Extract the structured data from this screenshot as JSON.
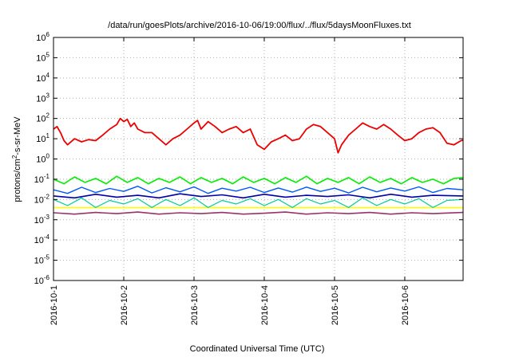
{
  "chart_data": {
    "type": "line",
    "title": "/data/run/goesPlots/archive/2016-10-06/19:00/flux/../flux/5daysMoonFluxes.txt",
    "xlabel": "Coordinated Universal Time (UTC)",
    "ylabel_parts": [
      "protons/cm",
      "2",
      "-s-sr-MeV"
    ],
    "y_scale": "log",
    "ylim": [
      1e-06,
      1000000.0
    ],
    "xlim": [
      0,
      5.83
    ],
    "x_unit": "days since 2016-10-01 00:00 UTC",
    "x_ticks": [
      {
        "pos": 0,
        "label": "2016-10-1"
      },
      {
        "pos": 1,
        "label": "2016-10-2"
      },
      {
        "pos": 2,
        "label": "2016-10-3"
      },
      {
        "pos": 3,
        "label": "2016-10-4"
      },
      {
        "pos": 4,
        "label": "2016-10-5"
      },
      {
        "pos": 5,
        "label": "2016-10-6"
      }
    ],
    "y_ticks": [
      {
        "exp": "6",
        "value": 1000000.0
      },
      {
        "exp": "5",
        "value": 100000.0
      },
      {
        "exp": "4",
        "value": 10000.0
      },
      {
        "exp": "3",
        "value": 1000.0
      },
      {
        "exp": "2",
        "value": 100.0
      },
      {
        "exp": "1",
        "value": 10.0
      },
      {
        "exp": "0",
        "value": 1.0
      },
      {
        "exp": "-1",
        "value": 0.1
      },
      {
        "exp": "-2",
        "value": 0.01
      },
      {
        "exp": "-3",
        "value": 0.001
      },
      {
        "exp": "-4",
        "value": 0.0001
      },
      {
        "exp": "-5",
        "value": 1e-05
      },
      {
        "exp": "-6",
        "value": 1e-06
      }
    ],
    "grid": true,
    "series": [
      {
        "color": "#ffff00",
        "width": 1.6,
        "points": [
          [
            0,
            0.004
          ],
          [
            5.83,
            0.004
          ]
        ]
      },
      {
        "color": "#993366",
        "width": 1.6,
        "points": [
          [
            0,
            0.0022
          ],
          [
            0.3,
            0.0019
          ],
          [
            0.6,
            0.0023
          ],
          [
            0.9,
            0.002
          ],
          [
            1.2,
            0.0024
          ],
          [
            1.5,
            0.0019
          ],
          [
            1.8,
            0.0022
          ],
          [
            2.1,
            0.002
          ],
          [
            2.4,
            0.0023
          ],
          [
            2.7,
            0.0019
          ],
          [
            3.0,
            0.0021
          ],
          [
            3.3,
            0.0024
          ],
          [
            3.6,
            0.0019
          ],
          [
            3.9,
            0.0022
          ],
          [
            4.2,
            0.002
          ],
          [
            4.5,
            0.0023
          ],
          [
            4.8,
            0.0019
          ],
          [
            5.1,
            0.0022
          ],
          [
            5.4,
            0.002
          ],
          [
            5.83,
            0.0023
          ]
        ]
      },
      {
        "color": "#00cc99",
        "width": 1.2,
        "points": [
          [
            0,
            0.01
          ],
          [
            0.2,
            0.005
          ],
          [
            0.4,
            0.012
          ],
          [
            0.6,
            0.004
          ],
          [
            0.8,
            0.009
          ],
          [
            1.0,
            0.006
          ],
          [
            1.2,
            0.011
          ],
          [
            1.4,
            0.004
          ],
          [
            1.6,
            0.01
          ],
          [
            1.8,
            0.005
          ],
          [
            2.0,
            0.012
          ],
          [
            2.2,
            0.004
          ],
          [
            2.4,
            0.009
          ],
          [
            2.6,
            0.006
          ],
          [
            2.8,
            0.011
          ],
          [
            3.0,
            0.005
          ],
          [
            3.2,
            0.01
          ],
          [
            3.4,
            0.004
          ],
          [
            3.6,
            0.011
          ],
          [
            3.8,
            0.006
          ],
          [
            4.0,
            0.009
          ],
          [
            4.2,
            0.004
          ],
          [
            4.4,
            0.012
          ],
          [
            4.6,
            0.005
          ],
          [
            4.8,
            0.01
          ],
          [
            5.0,
            0.006
          ],
          [
            5.2,
            0.011
          ],
          [
            5.4,
            0.004
          ],
          [
            5.6,
            0.009
          ],
          [
            5.83,
            0.01
          ]
        ]
      },
      {
        "color": "#0000aa",
        "width": 1.6,
        "points": [
          [
            0,
            0.015
          ],
          [
            0.3,
            0.012
          ],
          [
            0.6,
            0.018
          ],
          [
            0.9,
            0.013
          ],
          [
            1.2,
            0.016
          ],
          [
            1.5,
            0.012
          ],
          [
            1.8,
            0.019
          ],
          [
            2.1,
            0.014
          ],
          [
            2.4,
            0.017
          ],
          [
            2.7,
            0.012
          ],
          [
            3.0,
            0.018
          ],
          [
            3.3,
            0.013
          ],
          [
            3.6,
            0.016
          ],
          [
            3.9,
            0.014
          ],
          [
            4.2,
            0.017
          ],
          [
            4.5,
            0.012
          ],
          [
            4.8,
            0.018
          ],
          [
            5.1,
            0.013
          ],
          [
            5.4,
            0.016
          ],
          [
            5.83,
            0.015
          ]
        ]
      },
      {
        "color": "#0055ff",
        "width": 1.4,
        "points": [
          [
            0,
            0.03
          ],
          [
            0.2,
            0.02
          ],
          [
            0.4,
            0.04
          ],
          [
            0.6,
            0.022
          ],
          [
            0.8,
            0.035
          ],
          [
            1.0,
            0.025
          ],
          [
            1.2,
            0.045
          ],
          [
            1.4,
            0.021
          ],
          [
            1.6,
            0.038
          ],
          [
            1.8,
            0.024
          ],
          [
            2.0,
            0.042
          ],
          [
            2.2,
            0.02
          ],
          [
            2.4,
            0.036
          ],
          [
            2.6,
            0.026
          ],
          [
            2.8,
            0.04
          ],
          [
            3.0,
            0.022
          ],
          [
            3.2,
            0.037
          ],
          [
            3.4,
            0.023
          ],
          [
            3.6,
            0.041
          ],
          [
            3.8,
            0.025
          ],
          [
            4.0,
            0.036
          ],
          [
            4.2,
            0.021
          ],
          [
            4.4,
            0.04
          ],
          [
            4.6,
            0.024
          ],
          [
            4.8,
            0.037
          ],
          [
            5.0,
            0.026
          ],
          [
            5.2,
            0.042
          ],
          [
            5.4,
            0.022
          ],
          [
            5.6,
            0.035
          ],
          [
            5.83,
            0.03
          ]
        ]
      },
      {
        "color": "#00ee00",
        "width": 1.6,
        "points": [
          [
            0,
            0.1
          ],
          [
            0.15,
            0.06
          ],
          [
            0.3,
            0.13
          ],
          [
            0.45,
            0.07
          ],
          [
            0.6,
            0.11
          ],
          [
            0.75,
            0.06
          ],
          [
            0.9,
            0.14
          ],
          [
            1.05,
            0.07
          ],
          [
            1.2,
            0.12
          ],
          [
            1.35,
            0.06
          ],
          [
            1.5,
            0.11
          ],
          [
            1.65,
            0.07
          ],
          [
            1.8,
            0.13
          ],
          [
            1.95,
            0.06
          ],
          [
            2.1,
            0.12
          ],
          [
            2.25,
            0.07
          ],
          [
            2.4,
            0.11
          ],
          [
            2.55,
            0.06
          ],
          [
            2.7,
            0.13
          ],
          [
            2.85,
            0.07
          ],
          [
            3.0,
            0.11
          ],
          [
            3.15,
            0.06
          ],
          [
            3.3,
            0.12
          ],
          [
            3.45,
            0.07
          ],
          [
            3.6,
            0.14
          ],
          [
            3.75,
            0.06
          ],
          [
            3.9,
            0.11
          ],
          [
            4.05,
            0.07
          ],
          [
            4.2,
            0.12
          ],
          [
            4.35,
            0.06
          ],
          [
            4.5,
            0.13
          ],
          [
            4.65,
            0.07
          ],
          [
            4.8,
            0.11
          ],
          [
            4.95,
            0.06
          ],
          [
            5.1,
            0.12
          ],
          [
            5.25,
            0.07
          ],
          [
            5.4,
            0.1
          ],
          [
            5.55,
            0.06
          ],
          [
            5.7,
            0.11
          ],
          [
            5.83,
            0.12
          ]
        ]
      },
      {
        "color": "#ee0000",
        "width": 1.8,
        "points": [
          [
            0,
            30
          ],
          [
            0.05,
            40
          ],
          [
            0.1,
            20
          ],
          [
            0.15,
            8
          ],
          [
            0.2,
            5
          ],
          [
            0.3,
            10
          ],
          [
            0.4,
            7
          ],
          [
            0.5,
            9
          ],
          [
            0.6,
            8
          ],
          [
            0.7,
            15
          ],
          [
            0.8,
            30
          ],
          [
            0.9,
            50
          ],
          [
            0.95,
            100
          ],
          [
            1.0,
            70
          ],
          [
            1.05,
            90
          ],
          [
            1.1,
            40
          ],
          [
            1.15,
            60
          ],
          [
            1.2,
            30
          ],
          [
            1.3,
            20
          ],
          [
            1.4,
            20
          ],
          [
            1.5,
            10
          ],
          [
            1.6,
            5
          ],
          [
            1.7,
            10
          ],
          [
            1.8,
            15
          ],
          [
            1.9,
            30
          ],
          [
            2.0,
            60
          ],
          [
            2.05,
            80
          ],
          [
            2.1,
            30
          ],
          [
            2.2,
            70
          ],
          [
            2.3,
            40
          ],
          [
            2.4,
            20
          ],
          [
            2.5,
            30
          ],
          [
            2.6,
            40
          ],
          [
            2.7,
            20
          ],
          [
            2.8,
            30
          ],
          [
            2.9,
            5
          ],
          [
            3.0,
            3
          ],
          [
            3.1,
            7
          ],
          [
            3.2,
            10
          ],
          [
            3.3,
            15
          ],
          [
            3.4,
            8
          ],
          [
            3.5,
            10
          ],
          [
            3.6,
            30
          ],
          [
            3.7,
            50
          ],
          [
            3.8,
            40
          ],
          [
            3.9,
            20
          ],
          [
            4.0,
            10
          ],
          [
            4.05,
            2
          ],
          [
            4.1,
            5
          ],
          [
            4.2,
            15
          ],
          [
            4.3,
            30
          ],
          [
            4.4,
            60
          ],
          [
            4.5,
            40
          ],
          [
            4.6,
            30
          ],
          [
            4.7,
            50
          ],
          [
            4.8,
            30
          ],
          [
            4.9,
            15
          ],
          [
            5.0,
            8
          ],
          [
            5.1,
            10
          ],
          [
            5.2,
            20
          ],
          [
            5.3,
            30
          ],
          [
            5.4,
            35
          ],
          [
            5.5,
            20
          ],
          [
            5.6,
            6
          ],
          [
            5.7,
            5
          ],
          [
            5.8,
            8
          ],
          [
            5.9,
            10
          ],
          [
            6.0,
            15
          ],
          [
            6.1,
            20
          ],
          [
            6.2,
            15
          ],
          [
            6.3,
            20
          ],
          [
            6.4,
            15
          ]
        ]
      }
    ]
  }
}
